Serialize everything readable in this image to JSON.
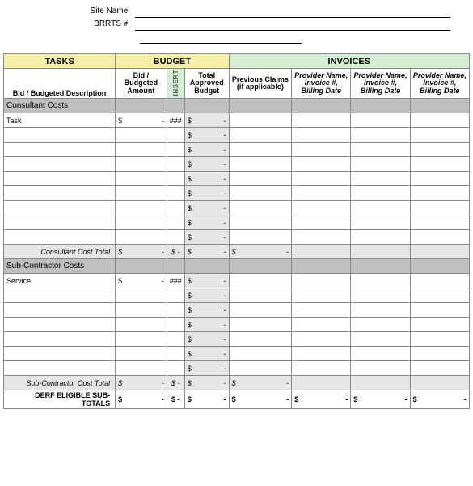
{
  "header": {
    "site_name_label": "Site Name:",
    "brrts_label": "BRRTS #:"
  },
  "group_headers": {
    "tasks": "TASKS",
    "budget": "BUDGET",
    "invoices": "INVOICES"
  },
  "col_headers": {
    "desc": "Bid / Budgeted Description",
    "bid": "Bid / Budgeted Amount",
    "insert": "INSERT",
    "total": "Total Approved Budget",
    "prev": "Previous Claims (if applicable)",
    "inv1": "Provider Name, Invoice #, Billing Date",
    "inv2": "Provider Name, Invoice #, Billing Date",
    "inv3": "Provider Name, Invoice #, Billing Date"
  },
  "sections": [
    {
      "title": "Consultant Costs",
      "first_label": "Task",
      "row_count": 9,
      "total_label": "Consultant Cost Total"
    },
    {
      "title": "Sub-Contractor Costs",
      "first_label": "Service",
      "row_count": 7,
      "total_label": "Sub-Contractor Cost Total"
    }
  ],
  "grand_total_label": "DERF ELIGIBLE SUB-TOTALS",
  "money": {
    "sym": "$",
    "dash": "-",
    "hash": "###"
  },
  "colors": {
    "tasks_hdr": "#f5f0a6",
    "budget_hdr": "#f5f0a6",
    "invoices_hdr": "#d5efd5",
    "section_gray": "#bfbfbf",
    "light_gray": "#e6e6e6",
    "border": "#888888"
  }
}
